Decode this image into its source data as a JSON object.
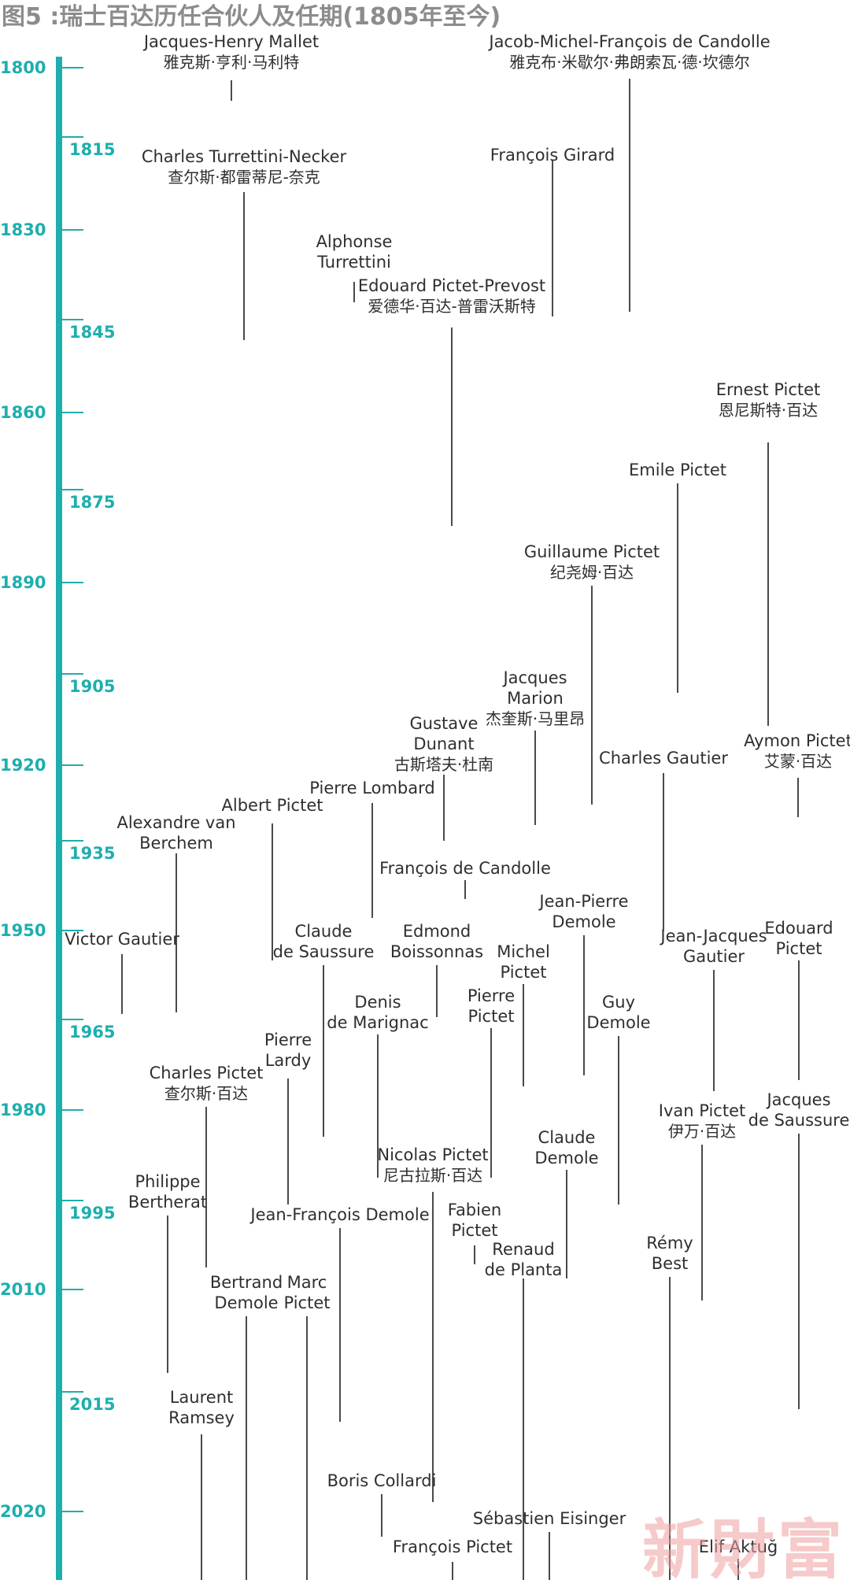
{
  "title": "图5 :瑞士百达历任合伙人及任期(1805年至今)",
  "colors": {
    "axis": "#1eaeae",
    "text": "#2f2f2f",
    "line": "#4a4a4a",
    "watermark": "#f0a0a0"
  },
  "axis_years": [
    "1800",
    "1815",
    "1830",
    "1845",
    "1860",
    "1875",
    "1890",
    "1905",
    "1920",
    "1935",
    "1950",
    "1965",
    "1980",
    "1995",
    "2010",
    "2015",
    "2020"
  ],
  "partners": [
    {
      "en": "Jacques-Henry Mallet",
      "zh": "雅克斯·亨利·马利特"
    },
    {
      "en": "Jacob-Michel-François de Candolle",
      "zh": "雅克布·米歇尔·弗朗索瓦·德·坎德尔"
    },
    {
      "en": "Charles Turrettini-Necker",
      "zh": "查尔斯·都雷蒂尼-奈克"
    },
    {
      "en": "François Girard"
    },
    {
      "en": "Alphonse\nTurrettini"
    },
    {
      "en": "Edouard Pictet-Prevost",
      "zh": "爱德华·百达-普雷沃斯特"
    },
    {
      "en": "Ernest Pictet",
      "zh": "恩尼斯特·百达"
    },
    {
      "en": "Emile Pictet"
    },
    {
      "en": "Guillaume Pictet",
      "zh": "纪尧姆·百达"
    },
    {
      "en": "Jacques\nMarion",
      "zh": "杰奎斯·马里昂"
    },
    {
      "en": "Gustave\nDunant",
      "zh": "古斯塔夫·杜南"
    },
    {
      "en": "Aymon Pictet",
      "zh": "艾蒙·百达"
    },
    {
      "en": "Charles Gautier"
    },
    {
      "en": "Pierre Lombard"
    },
    {
      "en": "Albert Pictet"
    },
    {
      "en": "Alexandre van\nBerchem"
    },
    {
      "en": "François de Candolle"
    },
    {
      "en": "Jean-Pierre\nDemole"
    },
    {
      "en": "Victor Gautier"
    },
    {
      "en": "Claude\nde Saussure"
    },
    {
      "en": "Edmond\nBoissonnas"
    },
    {
      "en": "Michel\nPictet"
    },
    {
      "en": "Jean-Jacques\nGautier"
    },
    {
      "en": "Edouard\nPictet"
    },
    {
      "en": "Denis\nde Marignac"
    },
    {
      "en": "Pierre\nPictet"
    },
    {
      "en": "Guy\nDemole"
    },
    {
      "en": "Pierre\nLardy"
    },
    {
      "en": "Charles Pictet",
      "zh": "查尔斯·百达"
    },
    {
      "en": "Ivan Pictet",
      "zh": "伊万·百达"
    },
    {
      "en": "Jacques\nde Saussure"
    },
    {
      "en": "Claude\nDemole"
    },
    {
      "en": "Nicolas Pictet",
      "zh": "尼古拉斯·百达"
    },
    {
      "en": "Philippe\nBertherat"
    },
    {
      "en": "Jean-François Demole"
    },
    {
      "en": "Fabien\nPictet"
    },
    {
      "en": "Renaud\nde Planta"
    },
    {
      "en": "Rémy\nBest"
    },
    {
      "en": "Bertrand\nDemole"
    },
    {
      "en": "Marc\nPictet"
    },
    {
      "en": "Laurent\nRamsey"
    },
    {
      "en": "Boris Collardi"
    },
    {
      "en": "Sébastien Eisinger"
    },
    {
      "en": "François Pictet"
    },
    {
      "en": "Elif Aktuğ"
    }
  ],
  "watermark": "新財富"
}
